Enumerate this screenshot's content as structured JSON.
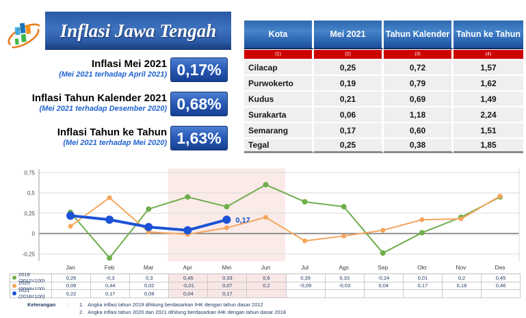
{
  "header": {
    "title": "Inflasi Jawa Tengah",
    "logo": "bps-logo"
  },
  "stats": [
    {
      "label": "Inflasi Mei 2021",
      "sublabel": "(Mei 2021 terhadap April 2021)",
      "value": "0,17%"
    },
    {
      "label": "Inflasi Tahun Kalender 2021",
      "sublabel": "(Mei 2021 terhadap Desember 2020)",
      "value": "0,68%"
    },
    {
      "label": "Inflasi Tahun ke Tahun",
      "sublabel": "(Mei 2021 terhadap Mei 2020)",
      "value": "1,63%"
    }
  ],
  "city_table": {
    "columns": [
      "Kota",
      "Mei 2021",
      "Tahun Kalender",
      "Tahun ke Tahun"
    ],
    "column_numbers": [
      "(1)",
      "(2)",
      "(3)",
      "(4)"
    ],
    "rows": [
      [
        "Cilacap",
        "0,25",
        "0,72",
        "1,57"
      ],
      [
        "Purwokerto",
        "0,19",
        "0,79",
        "1,62"
      ],
      [
        "Kudus",
        "0,21",
        "0,69",
        "1,49"
      ],
      [
        "Surakarta",
        "0,06",
        "1,18",
        "2,24"
      ],
      [
        "Semarang",
        "0,17",
        "0,60",
        "1,51"
      ],
      [
        "Tegal",
        "0,25",
        "0,38",
        "1,85"
      ]
    ]
  },
  "chart_data": {
    "type": "line",
    "title": "",
    "categories": [
      "Jan",
      "Feb",
      "Mar",
      "Apr",
      "Mei",
      "Jun",
      "Jul",
      "Ags",
      "Sep",
      "Okt",
      "Nov",
      "Des"
    ],
    "y_ticks": [
      {
        "label": "0,75",
        "value": 0.75
      },
      {
        "label": "0,5",
        "value": 0.5
      },
      {
        "label": "0,25",
        "value": 0.25
      },
      {
        "label": "0",
        "value": 0
      },
      {
        "label": "-0,25",
        "value": -0.25
      }
    ],
    "ylim": [
      -0.42,
      0.85
    ],
    "grid": true,
    "legend_position": "left-of-data-table",
    "highlight_band": {
      "from_month": "Apr",
      "to_month": "Jun",
      "color": "#faeae8"
    },
    "annotation": {
      "text": "0,17",
      "month": "Mei",
      "series": "2021 (2018=100)",
      "color": "#1550c8"
    },
    "series": [
      {
        "name": "2019 (2012=100)",
        "color": "#6fae4c",
        "marker_r": 4,
        "line_w": 2,
        "values": [
          0.26,
          -0.3,
          0.3,
          0.45,
          0.33,
          0.6,
          0.39,
          0.33,
          -0.24,
          0.01,
          0.2,
          0.45
        ],
        "display": [
          "0,26",
          "-0,3",
          "0,3",
          "0,45",
          "0,33",
          "0,6",
          "0,39",
          "0,33",
          "-0,24",
          "0,01",
          "0,2",
          "0,45"
        ]
      },
      {
        "name": "2020 (2018=100)",
        "color": "#f5a55c",
        "marker_r": 3.5,
        "line_w": 2,
        "values": [
          0.09,
          0.44,
          0.02,
          -0.01,
          0.07,
          0.2,
          -0.09,
          -0.03,
          0.04,
          0.17,
          0.18,
          0.46
        ],
        "display": [
          "0,09",
          "0,44",
          "0,02",
          "-0,01",
          "0,07",
          "0,2",
          "-0,09",
          "-0,03",
          "0,04",
          "0,17",
          "0,18",
          "0,46"
        ]
      },
      {
        "name": "2021 (2018=100)",
        "color": "#1b52d6",
        "marker_r": 6,
        "line_w": 4,
        "values": [
          0.22,
          0.17,
          0.08,
          0.04,
          0.17,
          null,
          null,
          null,
          null,
          null,
          null,
          null
        ],
        "display": [
          "0,22",
          "0,17",
          "0,08",
          "0,04",
          "0,17",
          "",
          "",
          "",
          "",
          "",
          "",
          ""
        ]
      }
    ],
    "highlight_columns": [
      3,
      4,
      5
    ]
  },
  "footnote": {
    "label": "Keterangan",
    "separator": ":",
    "items": [
      {
        "num": "1.",
        "text": "Angka inflasi tahun 2019 dihitung berdasarkan IHK dengan tahun dasar 2012"
      },
      {
        "num": "2.",
        "text": "Angka inflasi tahun 2020 dan 2021 dihitung berdasarkan IHK dengan tahun dasar 2018"
      }
    ]
  }
}
